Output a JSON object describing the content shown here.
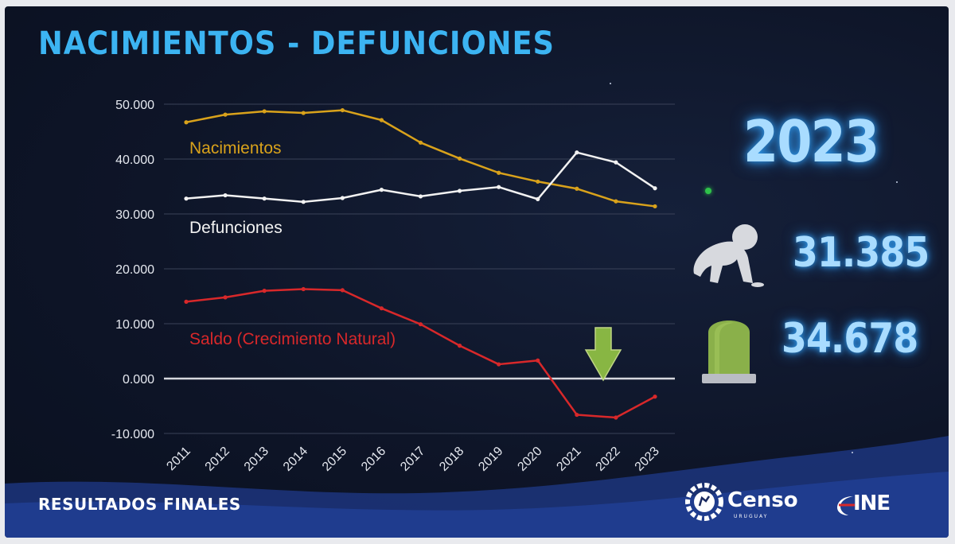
{
  "title": "NACIMIENTOS - DEFUNCIONES",
  "footer": {
    "label": "RESULTADOS FINALES"
  },
  "highlight": {
    "year": "2023",
    "births": "31.385",
    "deaths": "34.678"
  },
  "logos": {
    "censo": "Censo",
    "censo_sub": "URUGUAY",
    "ine": "INE"
  },
  "icons": {
    "births": "crawling-baby-icon",
    "deaths": "tombstone-icon",
    "arrow": "down-arrow-icon"
  },
  "colors": {
    "background": "#0e1528",
    "title": "#3cb4f2",
    "births": "#d9a21b",
    "deaths": "#f2f2f2",
    "saldo": "#d8282a",
    "arrow": "#8fbf45",
    "stat_glow": "#a9dcff"
  },
  "chart_data": {
    "type": "line",
    "x": [
      "2011",
      "2012",
      "2013",
      "2014",
      "2015",
      "2016",
      "2017",
      "2018",
      "2019",
      "2020",
      "2021",
      "2022",
      "2023"
    ],
    "ylim": [
      -10000,
      50000
    ],
    "yticks": [
      50000,
      40000,
      30000,
      20000,
      10000,
      0,
      -10000
    ],
    "ytick_labels": [
      "50.000",
      "40.000",
      "30.000",
      "20.000",
      "10.000",
      "0.000",
      "-10.000"
    ],
    "grid": true,
    "series": [
      {
        "name": "Nacimientos",
        "color": "#d9a21b",
        "values": [
          46700,
          48100,
          48700,
          48400,
          48900,
          47100,
          43000,
          40100,
          37500,
          35900,
          34600,
          32300,
          31385
        ]
      },
      {
        "name": "Defunciones",
        "color": "#f2f2f2",
        "values": [
          32800,
          33400,
          32800,
          32200,
          32900,
          34400,
          33200,
          34200,
          34900,
          32700,
          41200,
          39400,
          34678
        ]
      },
      {
        "name": "Saldo (Crecimiento Natural)",
        "color": "#d8282a",
        "values": [
          14000,
          14800,
          16000,
          16300,
          16100,
          12800,
          9900,
          6000,
          2600,
          3300,
          -6600,
          -7100,
          -3293
        ]
      }
    ]
  }
}
